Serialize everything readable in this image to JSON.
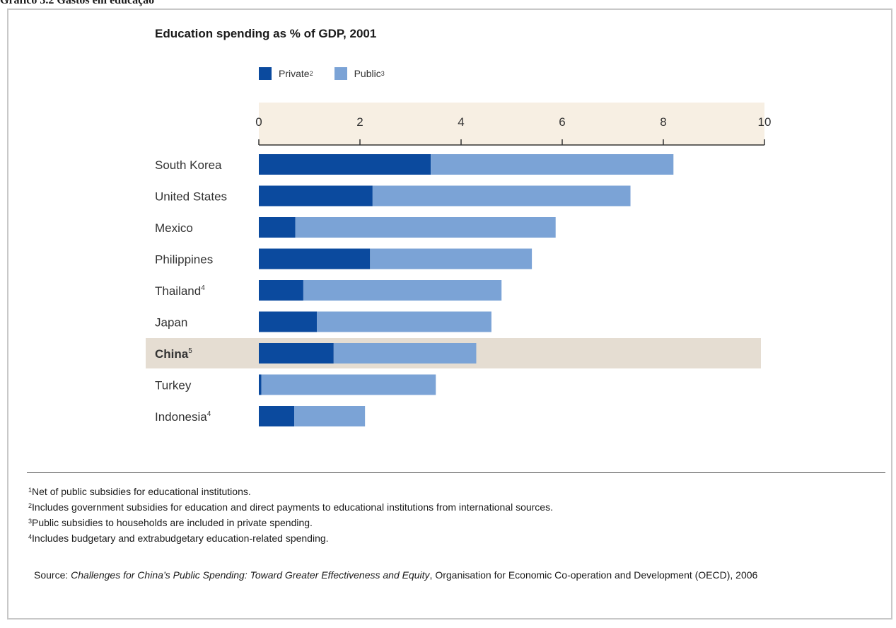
{
  "page_title": "Gráfico 3.2 Gastos em educação",
  "chart_data": {
    "type": "bar",
    "orientation": "horizontal",
    "stacked": true,
    "title": "Education spending as % of GDP, 2001",
    "xlim": [
      0,
      10
    ],
    "x_ticks": [
      "0",
      "2",
      "4",
      "6",
      "8",
      "10"
    ],
    "categories": [
      "South Korea",
      "United States",
      "Mexico",
      "Philippines",
      "Thailand",
      "Japan",
      "China",
      "Turkey",
      "Indonesia"
    ],
    "category_superscripts": [
      "",
      "",
      "",
      "",
      "4",
      "",
      "5",
      "",
      "4"
    ],
    "highlight_category": "China",
    "legend_position": "top",
    "series": [
      {
        "name": "Private",
        "superscript": "2",
        "color": "#0b4a9e",
        "values": [
          3.4,
          2.25,
          0.72,
          2.2,
          0.88,
          1.15,
          1.48,
          0.05,
          0.7
        ]
      },
      {
        "name": "Public",
        "superscript": "3",
        "color": "#7ba3d6",
        "values": [
          4.8,
          5.1,
          5.15,
          3.2,
          3.92,
          3.45,
          2.82,
          3.45,
          1.4
        ]
      }
    ],
    "highlight_color": "#e5ddd2",
    "axis_band_color": "#f7efe3"
  },
  "footnotes": [
    {
      "mark": "1",
      "text": "Net of public subsidies for educational institutions."
    },
    {
      "mark": "2",
      "text": "Includes government subsidies for education and direct payments to educational institutions from international sources."
    },
    {
      "mark": "3",
      "text": "Public subsidies to households are included in private spending."
    },
    {
      "mark": "4",
      "text": "Includes budgetary and extrabudgetary education-related spending."
    }
  ],
  "source": {
    "prefix": "Source: ",
    "title": "Challenges for China’s Public Spending: Toward Greater Effectiveness and Equity",
    "suffix": ", Organisation for Economic Co-operation and Development (OECD), 2006"
  }
}
